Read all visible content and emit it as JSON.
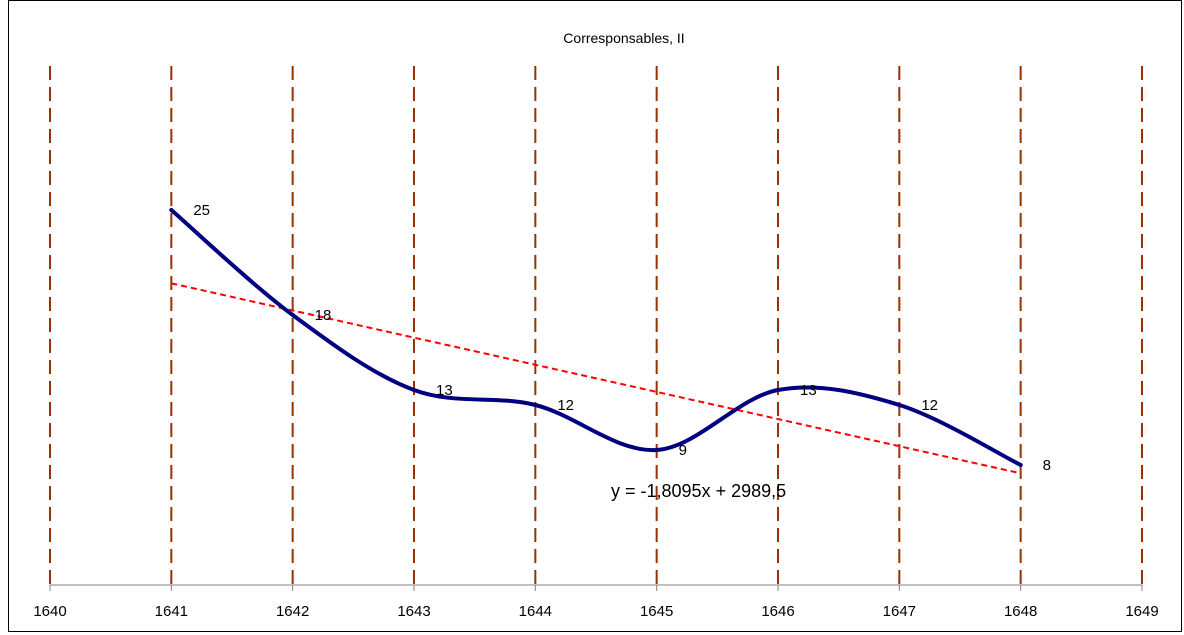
{
  "chart_data": {
    "type": "line",
    "title": "Corresponsables, II",
    "xlabel": "",
    "ylabel": "",
    "x_ticks": [
      1640,
      1641,
      1642,
      1643,
      1644,
      1645,
      1646,
      1647,
      1648,
      1649
    ],
    "xlim": [
      1640,
      1649
    ],
    "ylim": [
      0,
      35
    ],
    "grid": "vertical dashed lines at each x tick",
    "legend": "none",
    "series": [
      {
        "x": [
          1641,
          1642,
          1643,
          1644,
          1645,
          1646,
          1647,
          1648
        ],
        "values": [
          25,
          18,
          13,
          12,
          9,
          13,
          12,
          8
        ],
        "color": "#000080",
        "smoothed": true
      }
    ],
    "trendline": {
      "type": "linear",
      "equation": "y = -1,8095x + 2989,5",
      "slope": -1.8095,
      "intercept": 2989.5,
      "x_range": [
        1641,
        1648
      ],
      "color": "#ff0000"
    },
    "colors": {
      "gridline": "#993300",
      "axis": "#808080"
    }
  }
}
